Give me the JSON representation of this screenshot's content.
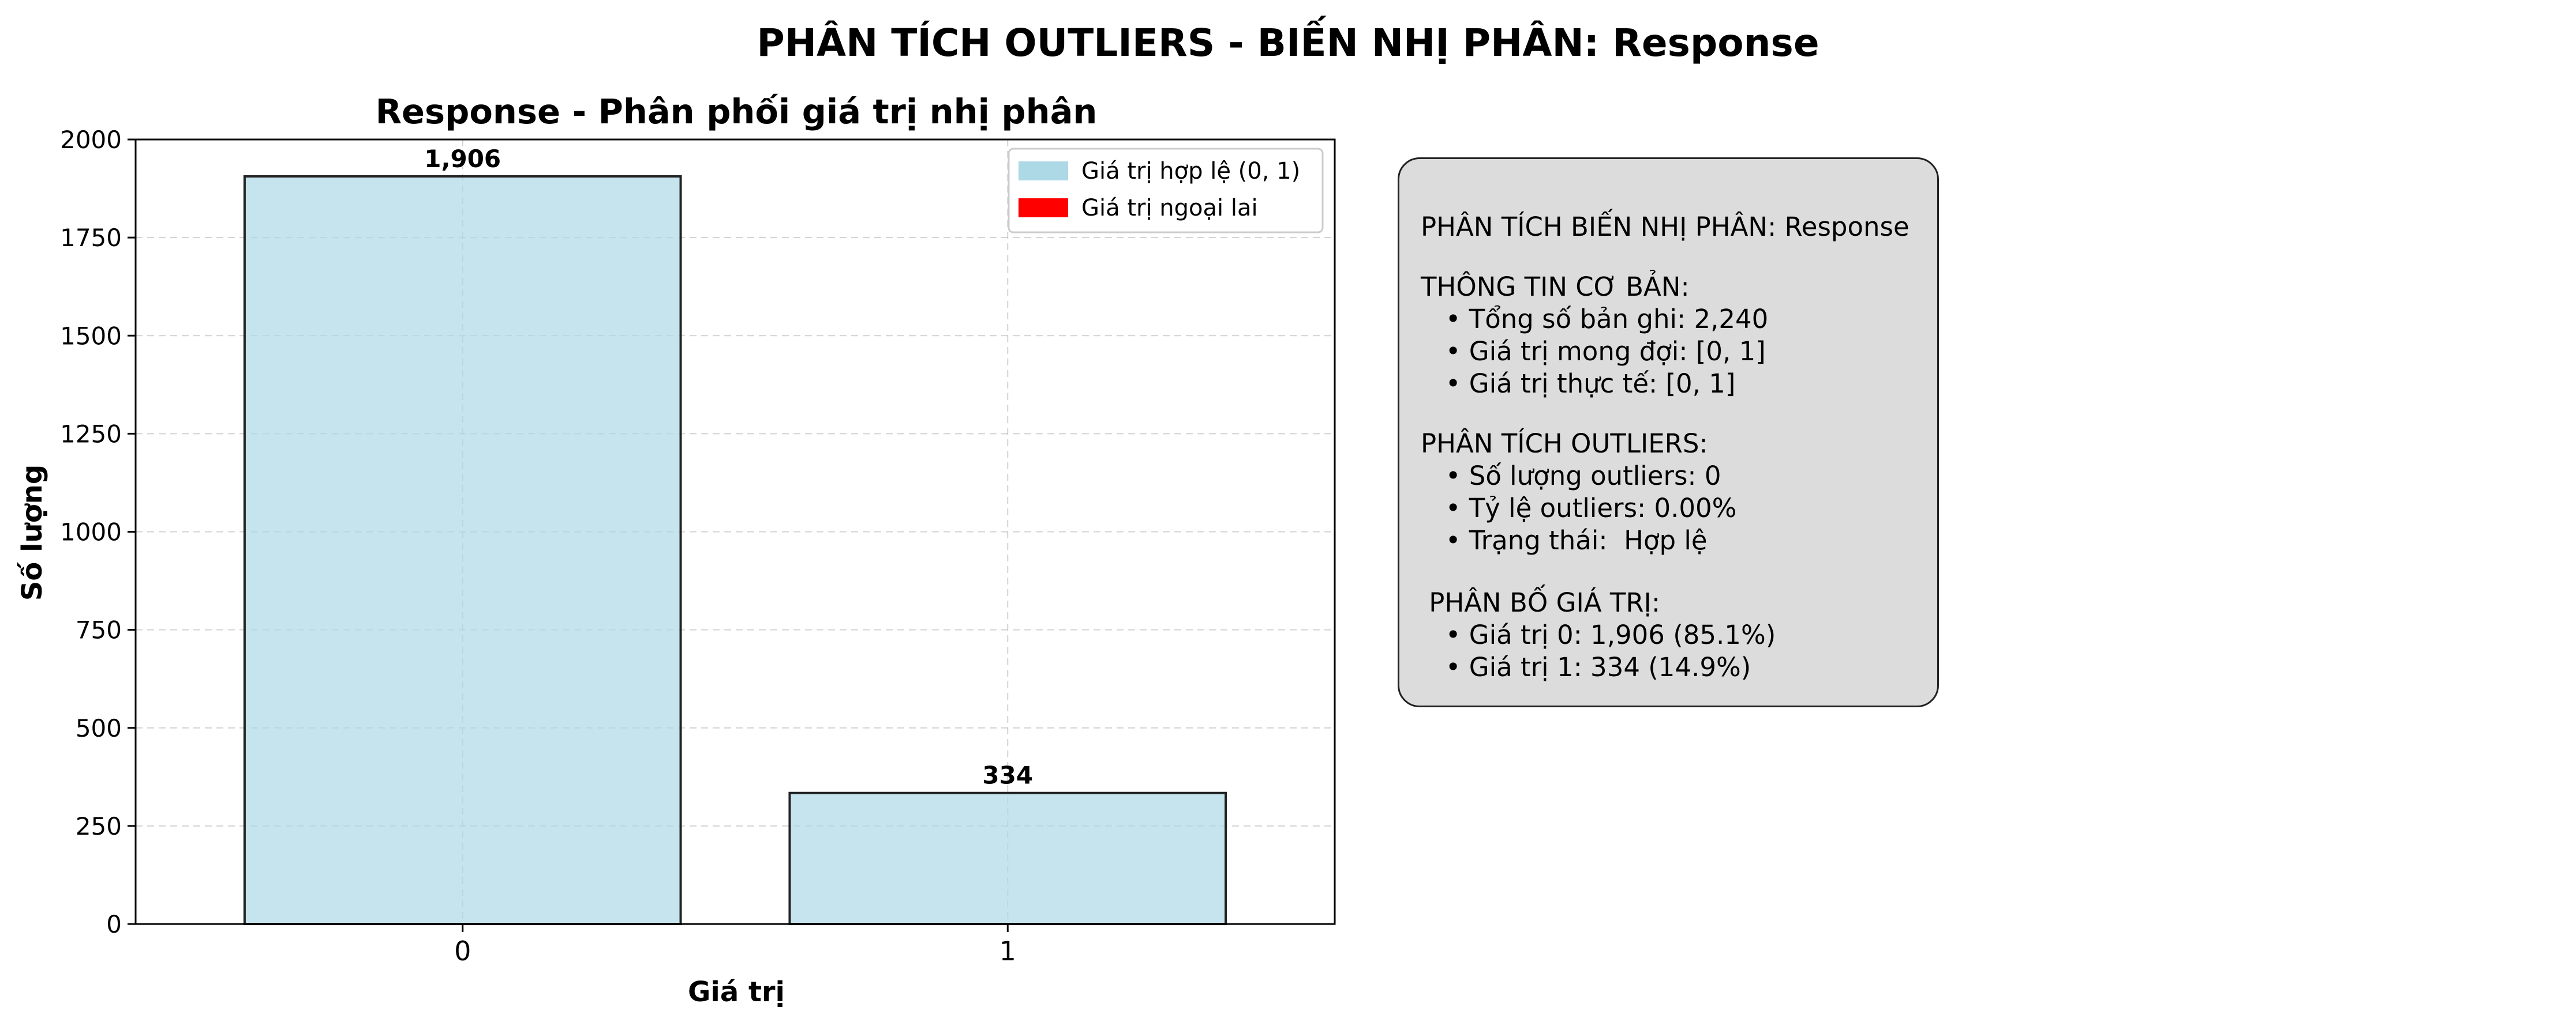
{
  "figure": {
    "suptitle": "PHÂN TÍCH OUTLIERS - BIẾN NHỊ PHÂN: Response"
  },
  "chart_data": {
    "type": "bar",
    "title": "Response - Phân phối giá trị nhị phân",
    "xlabel": "Giá trị",
    "ylabel": "Số lượng",
    "categories": [
      "0",
      "1"
    ],
    "values": [
      1906,
      334
    ],
    "value_labels": [
      "1,906",
      "334"
    ],
    "ylim": [
      0,
      2000
    ],
    "yticks": [
      0,
      250,
      500,
      750,
      1000,
      1250,
      1500,
      1750,
      2000
    ],
    "ytick_labels": [
      "0",
      "250",
      "500",
      "750",
      "1000",
      "1250",
      "1500",
      "1750",
      "2000"
    ],
    "grid": true,
    "legend_position": "top-right",
    "bar_color": "#add8e6",
    "legend": [
      {
        "label": "Giá trị hợp lệ (0, 1)",
        "color": "#add8e6"
      },
      {
        "label": "Giá trị ngoại lai",
        "color": "#ff0000"
      }
    ]
  },
  "info": {
    "title": "PHÂN TÍCH BIẾN NHỊ PHÂN: Response",
    "basic_header": "THÔNG TIN CƠ BẢN:",
    "basic_items": [
      "   • Tổng số bản ghi: 2,240",
      "   • Giá trị mong đợi: [0, 1]",
      "   • Giá trị thực tế: [0, 1]"
    ],
    "outlier_header": "PHÂN TÍCH OUTLIERS:",
    "outlier_items": [
      "   • Số lượng outliers: 0",
      "   • Tỷ lệ outliers: 0.00%",
      "   • Trạng thái:  Hợp lệ"
    ],
    "dist_header": " PHÂN BỐ GIÁ TRỊ:",
    "dist_items": [
      "   • Giá trị 0: 1,906 (85.1%)",
      "   • Giá trị 1: 334 (14.9%)"
    ]
  }
}
